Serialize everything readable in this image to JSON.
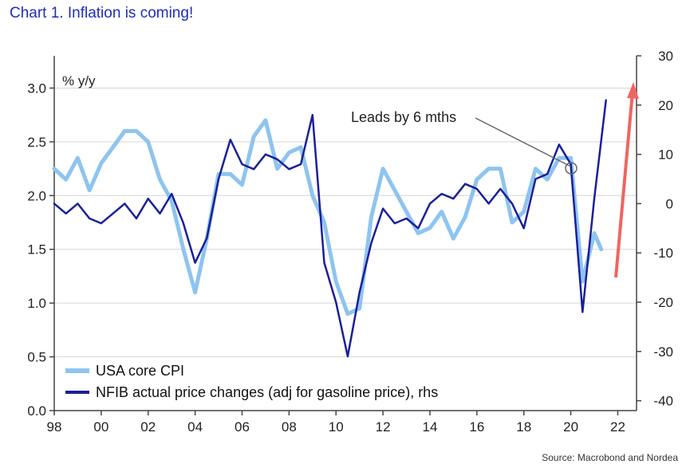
{
  "title": "Chart 1. Inflation is coming!",
  "chart_data": {
    "type": "line",
    "ylabel_left": "% y/y",
    "left_ticks": [
      "0.0",
      "0.5",
      "1.0",
      "1.5",
      "2.0",
      "2.5",
      "3.0"
    ],
    "right_ticks": [
      "-40",
      "-30",
      "-20",
      "-10",
      "0",
      "10",
      "20",
      "30"
    ],
    "x_ticks": [
      "98",
      "00",
      "02",
      "04",
      "06",
      "08",
      "10",
      "12",
      "14",
      "16",
      "18",
      "20",
      "22"
    ],
    "ylim_left": [
      0,
      3.3
    ],
    "ylim_right": [
      -42,
      30
    ],
    "xlim": [
      1998,
      2022.8
    ],
    "annotation": "Leads by 6 mths",
    "source": "Source: Macrobond and Nordea",
    "series": [
      {
        "name": "USA core CPI",
        "axis": "left",
        "color": "#8ec4ef",
        "x": [
          1998.0,
          1998.5,
          1999.0,
          1999.5,
          2000.0,
          2000.5,
          2001.0,
          2001.5,
          2002.0,
          2002.5,
          2003.0,
          2003.5,
          2004.0,
          2004.5,
          2005.0,
          2005.5,
          2006.0,
          2006.5,
          2007.0,
          2007.5,
          2008.0,
          2008.5,
          2009.0,
          2009.5,
          2010.0,
          2010.5,
          2011.0,
          2011.5,
          2012.0,
          2012.5,
          2013.0,
          2013.5,
          2014.0,
          2014.5,
          2015.0,
          2015.5,
          2016.0,
          2016.5,
          2017.0,
          2017.5,
          2018.0,
          2018.5,
          2019.0,
          2019.5,
          2020.0,
          2020.5,
          2021.0,
          2021.3
        ],
        "values": [
          2.25,
          2.15,
          2.35,
          2.05,
          2.3,
          2.45,
          2.6,
          2.6,
          2.5,
          2.15,
          1.95,
          1.5,
          1.1,
          1.6,
          2.2,
          2.2,
          2.1,
          2.55,
          2.7,
          2.25,
          2.4,
          2.45,
          2.0,
          1.75,
          1.2,
          0.9,
          0.95,
          1.8,
          2.25,
          2.05,
          1.85,
          1.65,
          1.7,
          1.85,
          1.6,
          1.8,
          2.15,
          2.25,
          2.25,
          1.75,
          1.85,
          2.25,
          2.15,
          2.35,
          2.35,
          1.2,
          1.65,
          1.5
        ]
      },
      {
        "name": "NFIB actual price changes (adj for gasoline price), rhs",
        "axis": "right",
        "color": "#1a1f9a",
        "x": [
          1998.0,
          1998.5,
          1999.0,
          1999.5,
          2000.0,
          2000.5,
          2001.0,
          2001.5,
          2002.0,
          2002.5,
          2003.0,
          2003.5,
          2004.0,
          2004.5,
          2005.0,
          2005.5,
          2006.0,
          2006.5,
          2007.0,
          2007.5,
          2008.0,
          2008.5,
          2009.0,
          2009.5,
          2010.0,
          2010.5,
          2011.0,
          2011.5,
          2012.0,
          2012.5,
          2013.0,
          2013.5,
          2014.0,
          2014.5,
          2015.0,
          2015.5,
          2016.0,
          2016.5,
          2017.0,
          2017.5,
          2018.0,
          2018.5,
          2019.0,
          2019.5,
          2020.0,
          2020.5,
          2021.0,
          2021.5
        ],
        "values": [
          0,
          -2,
          0,
          -3,
          -4,
          -2,
          0,
          -3,
          1,
          -2,
          2,
          -4,
          -12,
          -7,
          5,
          13,
          8,
          7,
          10,
          9,
          7,
          8,
          18,
          -12,
          -20,
          -31,
          -18,
          -8,
          -1,
          -4,
          -3,
          -5,
          0,
          2,
          1,
          4,
          3,
          0,
          3,
          0,
          -5,
          5,
          6,
          12,
          8,
          -22,
          1,
          21
        ]
      }
    ]
  }
}
